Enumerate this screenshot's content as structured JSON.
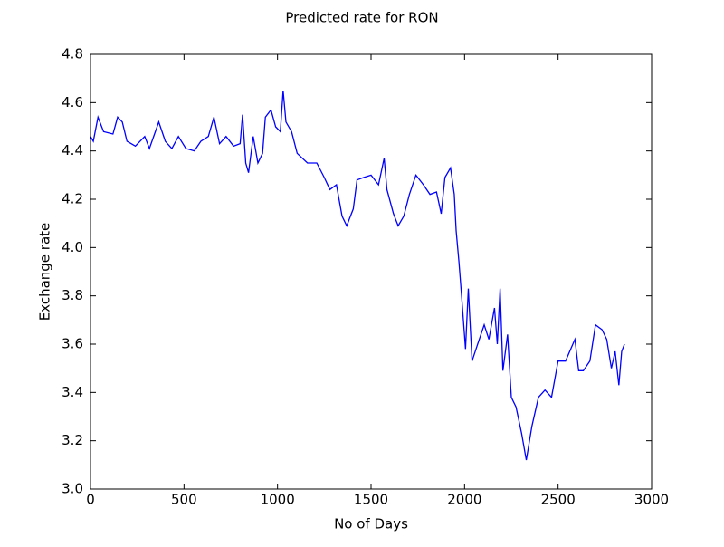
{
  "chart_data": {
    "type": "line",
    "title": "Predicted rate for RON",
    "x_label": "No of Days",
    "y_label": "Exchange rate",
    "xlim": [
      0,
      3000
    ],
    "xticks": [
      0,
      500,
      1000,
      1500,
      2000,
      2500,
      3000
    ],
    "ylim": [
      3.0,
      4.8
    ],
    "yticks": [
      {
        "value": 3.0,
        "label": "3.0"
      },
      {
        "value": 3.2,
        "label": "3.2"
      },
      {
        "value": 3.4,
        "label": "3.4"
      },
      {
        "value": 3.6,
        "label": "3.6"
      },
      {
        "value": 3.8,
        "label": "3.8"
      },
      {
        "value": 4.0,
        "label": "4.0"
      },
      {
        "value": 4.2,
        "label": "4.2"
      },
      {
        "value": 4.4,
        "label": "4.4"
      },
      {
        "value": 4.6,
        "label": "4.6"
      },
      {
        "value": 4.8,
        "label": "4.8"
      }
    ],
    "grid": false,
    "series": [
      {
        "color": "#0000ff",
        "x": [
          0,
          15,
          40,
          70,
          120,
          145,
          170,
          195,
          240,
          290,
          315,
          365,
          400,
          435,
          470,
          510,
          555,
          590,
          630,
          660,
          690,
          725,
          765,
          800,
          813,
          830,
          845,
          870,
          895,
          920,
          935,
          965,
          990,
          1015,
          1030,
          1045,
          1075,
          1105,
          1160,
          1210,
          1250,
          1280,
          1315,
          1345,
          1370,
          1405,
          1425,
          1460,
          1500,
          1540,
          1570,
          1585,
          1620,
          1645,
          1675,
          1705,
          1740,
          1780,
          1815,
          1850,
          1875,
          1895,
          1925,
          1945,
          1955,
          1970,
          1985,
          2005,
          2020,
          2040,
          2070,
          2105,
          2130,
          2160,
          2175,
          2190,
          2205,
          2230,
          2250,
          2275,
          2305,
          2330,
          2360,
          2395,
          2430,
          2465,
          2500,
          2540,
          2590,
          2610,
          2635,
          2670,
          2700,
          2735,
          2760,
          2785,
          2805,
          2825,
          2840,
          2855
        ],
        "values": [
          4.46,
          4.44,
          4.54,
          4.48,
          4.47,
          4.54,
          4.52,
          4.44,
          4.42,
          4.46,
          4.41,
          4.52,
          4.44,
          4.41,
          4.46,
          4.41,
          4.4,
          4.44,
          4.46,
          4.54,
          4.43,
          4.46,
          4.42,
          4.43,
          4.55,
          4.35,
          4.31,
          4.46,
          4.35,
          4.39,
          4.54,
          4.57,
          4.5,
          4.48,
          4.65,
          4.52,
          4.48,
          4.39,
          4.35,
          4.35,
          4.29,
          4.24,
          4.26,
          4.13,
          4.09,
          4.16,
          4.28,
          4.29,
          4.3,
          4.26,
          4.37,
          4.24,
          4.14,
          4.09,
          4.13,
          4.22,
          4.3,
          4.26,
          4.22,
          4.23,
          4.14,
          4.29,
          4.33,
          4.22,
          4.07,
          3.94,
          3.79,
          3.58,
          3.83,
          3.53,
          3.6,
          3.68,
          3.62,
          3.75,
          3.6,
          3.83,
          3.49,
          3.64,
          3.38,
          3.34,
          3.23,
          3.12,
          3.26,
          3.38,
          3.41,
          3.38,
          3.53,
          3.53,
          3.62,
          3.49,
          3.49,
          3.53,
          3.68,
          3.66,
          3.62,
          3.5,
          3.57,
          3.43,
          3.57,
          3.6
        ]
      }
    ]
  }
}
